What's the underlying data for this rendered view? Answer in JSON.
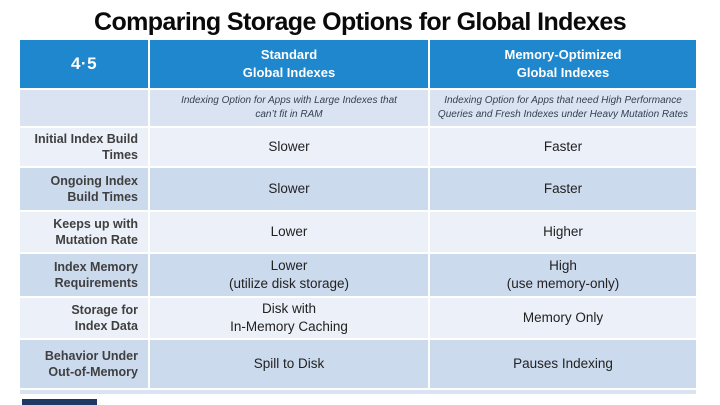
{
  "title": "Comparing Storage Options for Global Indexes",
  "table": {
    "version_badge": "4·5",
    "columns": [
      {
        "title": "Standard\nGlobal Indexes",
        "subtitle": "Indexing Option for Apps with Large Indexes that\ncan’t fit in RAM"
      },
      {
        "title": "Memory-Optimized\nGlobal Indexes",
        "subtitle": "Indexing Option for Apps that need High Performance\nQueries and Fresh Indexes under Heavy Mutation Rates"
      }
    ],
    "rows": [
      {
        "label": "Initial Index Build\nTimes",
        "standard": "Slower",
        "memory_optimized": "Faster"
      },
      {
        "label": "Ongoing Index\nBuild Times",
        "standard": "Slower",
        "memory_optimized": "Faster"
      },
      {
        "label": "Keeps up with\nMutation Rate",
        "standard": "Lower",
        "memory_optimized": "Higher"
      },
      {
        "label": "Index Memory\nRequirements",
        "standard": "Lower\n(utilize disk storage)",
        "memory_optimized": "High\n(use memory-only)"
      },
      {
        "label": "Storage for\nIndex Data",
        "standard": "Disk with\nIn-Memory Caching",
        "memory_optimized": "Memory Only"
      },
      {
        "label": "Behavior Under\nOut-of-Memory",
        "standard": "Spill to Disk",
        "memory_optimized": "Pauses Indexing"
      }
    ]
  },
  "colors": {
    "header_blue": "#1e87cd",
    "row_light": "#ebf0f9",
    "row_dark": "#ccdaee",
    "subtitle_row": "#d9e3f2",
    "label_text": "#3f3f3f",
    "value_text": "#222222",
    "subtitle_text": "#333f50",
    "title_text": "#0a0a0a",
    "footer_bar": "#1f3864"
  }
}
